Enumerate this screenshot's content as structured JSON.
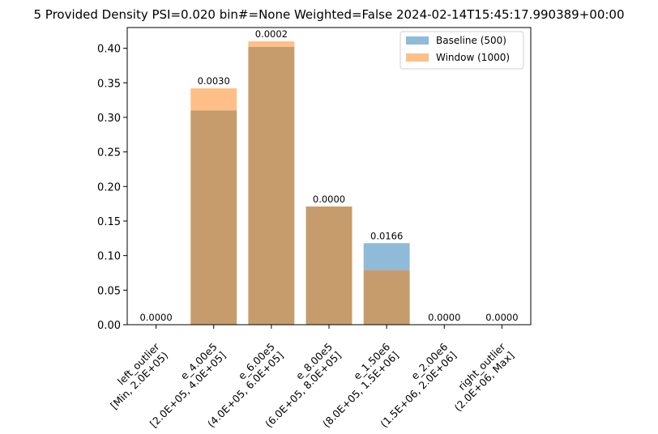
{
  "chart_data": {
    "type": "bar",
    "title": "5 Provided Density PSI=0.020 bin#=None Weighted=False 2024-02-14T15:45:17.990389+00:00",
    "xlabel": "",
    "ylabel": "",
    "ylim": [
      0,
      0.43
    ],
    "yticks": [
      "0.00",
      "0.05",
      "0.10",
      "0.15",
      "0.20",
      "0.25",
      "0.30",
      "0.35",
      "0.40"
    ],
    "categories": [
      [
        "left_outlier",
        "[Min, 2.0E+05)"
      ],
      [
        "e_4.00e5",
        "[2.0E+05, 4.0E+05]"
      ],
      [
        "e_6.00e5",
        "(4.0E+05, 6.0E+05]"
      ],
      [
        "e_8.00e5",
        "(6.0E+05, 8.0E+05]"
      ],
      [
        "e_1.50e6",
        "(8.0E+05, 1.5E+06]"
      ],
      [
        "e_2.00e6",
        "(1.5E+06, 2.0E+06]"
      ],
      [
        "right_outlier",
        "(2.0E+06, Max]"
      ]
    ],
    "series": [
      {
        "name": "Baseline (500)",
        "color": "#8fbbd9",
        "values": [
          0,
          0.31,
          0.402,
          0.171,
          0.118,
          0,
          0
        ]
      },
      {
        "name": "Window (1000)",
        "color": "#ffbf87",
        "values": [
          0,
          0.342,
          0.41,
          0.171,
          0.079,
          0,
          0
        ]
      }
    ],
    "overlap_color": "#c69c6d",
    "bar_labels": [
      "0.0000",
      "0.0030",
      "0.0002",
      "0.0000",
      "0.0166",
      "0.0000",
      "0.0000"
    ],
    "legend": {
      "placement": "top-right"
    },
    "grid": false
  }
}
